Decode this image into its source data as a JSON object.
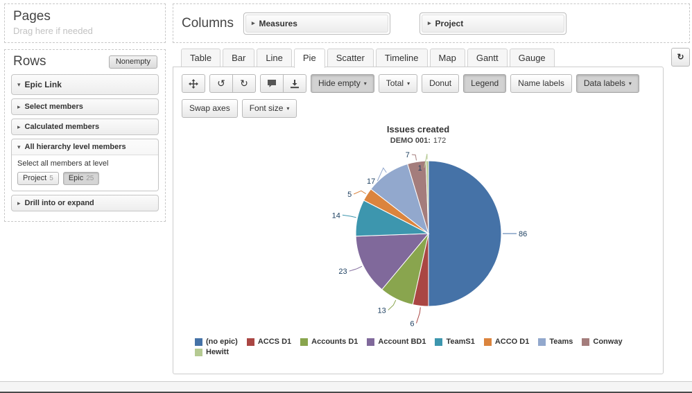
{
  "pages": {
    "title": "Pages",
    "hint": "Drag here if needed"
  },
  "columns": {
    "title": "Columns",
    "chips": [
      {
        "label": "Measures"
      },
      {
        "label": "Project"
      }
    ]
  },
  "rows": {
    "title": "Rows",
    "nonempty_label": "Nonempty",
    "items": [
      {
        "label": "Epic Link",
        "expanded": true,
        "variant": "primary"
      },
      {
        "label": "Select members",
        "expanded": false,
        "variant": "sub"
      },
      {
        "label": "Calculated members",
        "expanded": false,
        "variant": "sub"
      },
      {
        "label": "All hierarchy level members",
        "expanded": true,
        "variant": "sub",
        "detail": {
          "text": "Select all members at level",
          "level_buttons": [
            {
              "label": "Project",
              "count": "5",
              "pressed": false
            },
            {
              "label": "Epic",
              "count": "25",
              "pressed": true
            }
          ]
        }
      },
      {
        "label": "Drill into or expand",
        "expanded": false,
        "variant": "sub"
      }
    ]
  },
  "tabs": [
    {
      "label": "Table",
      "active": false
    },
    {
      "label": "Bar",
      "active": false
    },
    {
      "label": "Line",
      "active": false
    },
    {
      "label": "Pie",
      "active": true
    },
    {
      "label": "Scatter",
      "active": false
    },
    {
      "label": "Timeline",
      "active": false
    },
    {
      "label": "Map",
      "active": false
    },
    {
      "label": "Gantt",
      "active": false
    },
    {
      "label": "Gauge",
      "active": false
    }
  ],
  "toolbar": {
    "hide_empty_label": "Hide empty",
    "total_label": "Total",
    "donut_label": "Donut",
    "legend_label": "Legend",
    "name_labels_label": "Name labels",
    "data_labels_label": "Data labels",
    "swap_axes_label": "Swap axes",
    "font_size_label": "Font size"
  },
  "icons": {
    "caret": "▾",
    "collapsed": "▸",
    "expanded": "▾",
    "undo": "↺",
    "redo": "↻",
    "refresh": "↻"
  },
  "chart_data": {
    "type": "pie",
    "title": "Issues created",
    "subtitle_label": "DEMO 001:",
    "subtitle_value": "172",
    "total": 172,
    "legend_position": "bottom",
    "series": [
      {
        "name": "(no epic)",
        "value": 86,
        "color": "#4572A7"
      },
      {
        "name": "ACCS D1",
        "value": 6,
        "color": "#AA4643"
      },
      {
        "name": "Accounts D1",
        "value": 13,
        "color": "#89A54E"
      },
      {
        "name": "Account BD1",
        "value": 23,
        "color": "#80699B"
      },
      {
        "name": "TeamS1",
        "value": 14,
        "color": "#3D96AE"
      },
      {
        "name": "ACCO D1",
        "value": 5,
        "color": "#DB843D"
      },
      {
        "name": "Teams",
        "value": 17,
        "color": "#92A8CD"
      },
      {
        "name": "Conway",
        "value": 7,
        "color": "#A47D7C"
      },
      {
        "name": "Hewitt",
        "value": 1,
        "color": "#B5CA92"
      }
    ]
  }
}
